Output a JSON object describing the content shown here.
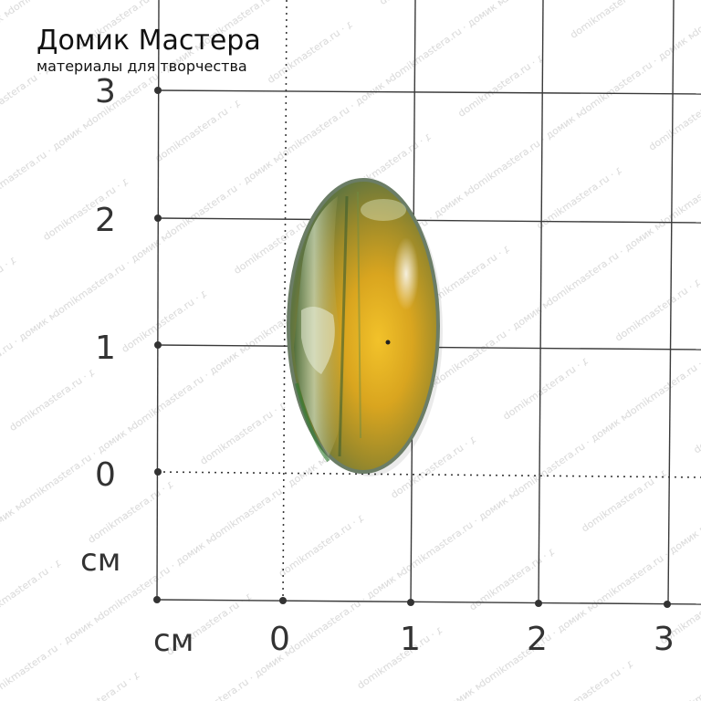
{
  "logo": {
    "title": "Домик Мастера",
    "subtitle": "материалы для творчества"
  },
  "ruler": {
    "unit": "см",
    "y_ticks": [
      "3",
      "2",
      "1",
      "0"
    ],
    "x_ticks": [
      "0",
      "1",
      "2",
      "3"
    ]
  },
  "watermark": {
    "text": "domikmastera.ru · домик мастера · материалы для творчества"
  },
  "colors": {
    "grid": "#333333",
    "stone_gold": "#e0b020",
    "stone_green": "#5f7a3a",
    "stone_rim": "#6b7d66"
  }
}
